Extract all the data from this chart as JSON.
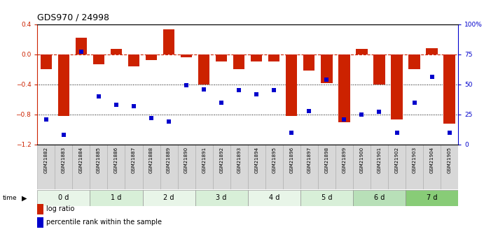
{
  "title": "GDS970 / 24998",
  "samples": [
    "GSM21882",
    "GSM21883",
    "GSM21884",
    "GSM21885",
    "GSM21886",
    "GSM21887",
    "GSM21888",
    "GSM21889",
    "GSM21890",
    "GSM21891",
    "GSM21892",
    "GSM21893",
    "GSM21894",
    "GSM21895",
    "GSM21896",
    "GSM21897",
    "GSM21898",
    "GSM21899",
    "GSM21900",
    "GSM21901",
    "GSM21902",
    "GSM21903",
    "GSM21904",
    "GSM21905"
  ],
  "log_ratio": [
    -0.2,
    -0.82,
    0.22,
    -0.13,
    0.07,
    -0.16,
    -0.08,
    0.33,
    -0.04,
    -0.4,
    -0.1,
    -0.2,
    -0.1,
    -0.1,
    -0.82,
    -0.22,
    -0.38,
    -0.9,
    0.07,
    -0.4,
    -0.87,
    -0.2,
    0.08,
    -0.92
  ],
  "percentile_rank": [
    21,
    8,
    77,
    40,
    33,
    32,
    22,
    19,
    49,
    46,
    35,
    45,
    42,
    45,
    10,
    28,
    54,
    21,
    25,
    27,
    10,
    35,
    56,
    10
  ],
  "time_groups": [
    {
      "label": "0 d",
      "start": 0,
      "end": 3
    },
    {
      "label": "1 d",
      "start": 3,
      "end": 6
    },
    {
      "label": "2 d",
      "start": 6,
      "end": 9
    },
    {
      "label": "3 d",
      "start": 9,
      "end": 12
    },
    {
      "label": "4 d",
      "start": 12,
      "end": 15
    },
    {
      "label": "5 d",
      "start": 15,
      "end": 18
    },
    {
      "label": "6 d",
      "start": 18,
      "end": 21
    },
    {
      "label": "7 d",
      "start": 21,
      "end": 24
    }
  ],
  "time_colors": [
    "#e8f5e8",
    "#d8efd8",
    "#e8f5e8",
    "#d8efd8",
    "#e8f5e8",
    "#d8efd8",
    "#b8e0b8",
    "#88cc77"
  ],
  "bar_color": "#cc2200",
  "dot_color": "#0000cc",
  "zero_line_color": "#cc2200",
  "ylim_left": [
    -1.2,
    0.4
  ],
  "ylim_right": [
    0,
    100
  ],
  "right_ticks": [
    0,
    25,
    50,
    75,
    100
  ],
  "right_tick_labels": [
    "0",
    "25",
    "50",
    "75",
    "100%"
  ],
  "left_ticks": [
    -1.2,
    -0.8,
    -0.4,
    0.0,
    0.4
  ],
  "dotted_lines": [
    -0.4,
    -0.8
  ]
}
